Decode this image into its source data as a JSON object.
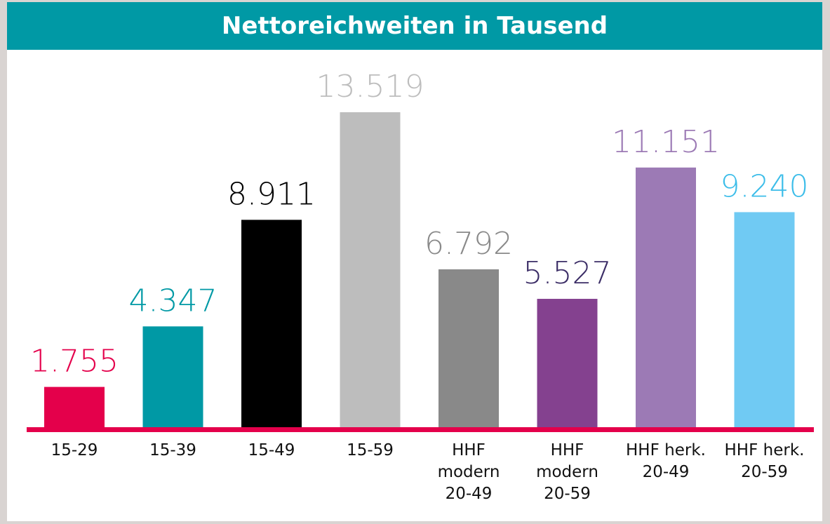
{
  "chart_data": {
    "type": "bar",
    "title": "Nettoreichweiten in Tausend",
    "categories": [
      "15-29",
      "15-39",
      "15-49",
      "15-59",
      "HHF modern 20-49",
      "HHF modern 20-59",
      "HHF herk. 20-49",
      "HHF herk. 20-59"
    ],
    "values": [
      1755,
      4347,
      8911,
      13519,
      6792,
      5527,
      11151,
      9240
    ],
    "value_labels": [
      "1.755",
      "4.347",
      "8.911",
      "13.519",
      "6.792",
      "5.527",
      "11.151",
      "9.240"
    ],
    "colors": [
      "#e4004b",
      "#0099a5",
      "#000000",
      "#bdbdbd",
      "#898989",
      "#84418f",
      "#9c7ab5",
      "#70caf3"
    ],
    "label_colors": [
      "#e4004b",
      "#0099a5",
      "#000000",
      "#bdbdbd",
      "#898989",
      "#3b2d66",
      "#9c7ab5",
      "#3cbde9"
    ],
    "grid": false
  }
}
